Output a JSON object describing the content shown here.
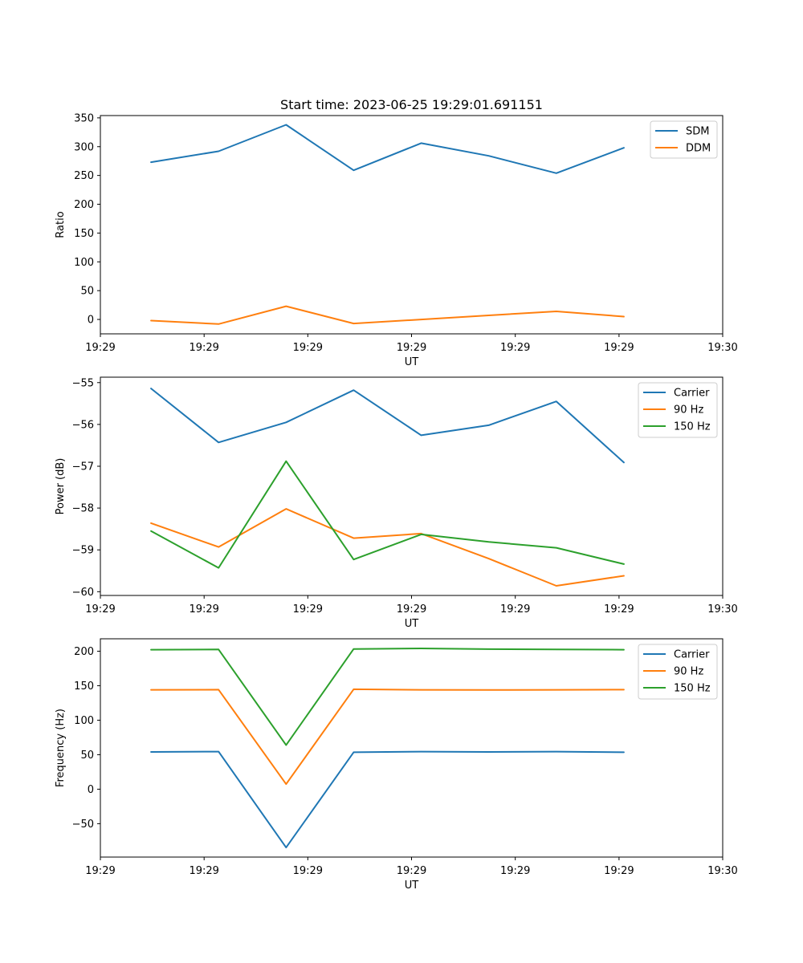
{
  "chart_data": [
    {
      "type": "line",
      "title": "Start time: 2023-06-25 19:29:01.691151",
      "xlabel": "UT",
      "ylabel": "Ratio",
      "x": [
        0,
        1,
        2,
        3,
        4,
        5,
        6,
        7
      ],
      "x_tick_positions": [
        -0.75,
        0.786,
        2.321,
        3.857,
        5.393,
        6.929,
        8.464
      ],
      "x_tick_labels": [
        "19:29",
        "19:29",
        "19:29",
        "19:29",
        "19:29",
        "19:29",
        "19:30"
      ],
      "xlim": [
        -0.75,
        8.464
      ],
      "yticks": [
        0,
        50,
        100,
        150,
        200,
        250,
        300,
        350
      ],
      "ylim": [
        -25,
        354
      ],
      "legend": "top-right",
      "grid": false,
      "series": [
        {
          "name": "SDM",
          "color": "#1f77b4",
          "values": [
            273,
            292,
            338,
            259,
            306,
            284,
            254,
            298
          ]
        },
        {
          "name": "DDM",
          "color": "#ff7f0e",
          "values": [
            -2,
            -8,
            23,
            -7,
            0,
            7,
            14,
            5
          ]
        }
      ]
    },
    {
      "type": "line",
      "title": "",
      "xlabel": "UT",
      "ylabel": "Power (dB)",
      "x": [
        0,
        1,
        2,
        3,
        4,
        5,
        6,
        7
      ],
      "x_tick_positions": [
        -0.75,
        0.786,
        2.321,
        3.857,
        5.393,
        6.929,
        8.464
      ],
      "x_tick_labels": [
        "19:29",
        "19:29",
        "19:29",
        "19:29",
        "19:29",
        "19:29",
        "19:30"
      ],
      "xlim": [
        -0.75,
        8.464
      ],
      "yticks": [
        -60,
        -59,
        -58,
        -57,
        -56,
        -55
      ],
      "ytick_labels": [
        "−60",
        "−59",
        "−58",
        "−57",
        "−56",
        "−55"
      ],
      "ylim": [
        -60.09,
        -54.87
      ],
      "legend": "top-right",
      "grid": false,
      "series": [
        {
          "name": "Carrier",
          "color": "#1f77b4",
          "values": [
            -55.14,
            -56.43,
            -55.95,
            -55.18,
            -56.26,
            -56.02,
            -55.45,
            -56.91
          ]
        },
        {
          "name": "90 Hz",
          "color": "#ff7f0e",
          "values": [
            -58.36,
            -58.93,
            -58.02,
            -58.72,
            -58.61,
            -59.21,
            -59.86,
            -59.62
          ]
        },
        {
          "name": "150 Hz",
          "color": "#2ca02c",
          "values": [
            -58.55,
            -59.43,
            -56.88,
            -59.23,
            -58.63,
            -58.81,
            -58.95,
            -59.34
          ]
        }
      ]
    },
    {
      "type": "line",
      "title": "",
      "xlabel": "UT",
      "ylabel": "Frequency (Hz)",
      "x": [
        0,
        1,
        2,
        3,
        4,
        5,
        6,
        7
      ],
      "x_tick_positions": [
        -0.75,
        0.786,
        2.321,
        3.857,
        5.393,
        6.929,
        8.464
      ],
      "x_tick_labels": [
        "19:29",
        "19:29",
        "19:29",
        "19:29",
        "19:29",
        "19:29",
        "19:30"
      ],
      "xlim": [
        -0.75,
        8.464
      ],
      "yticks": [
        -50,
        0,
        50,
        100,
        150,
        200
      ],
      "ytick_labels": [
        "−50",
        "0",
        "50",
        "100",
        "150",
        "200"
      ],
      "ylim": [
        -98.4,
        218
      ],
      "legend": "top-right",
      "grid": false,
      "series": [
        {
          "name": "Carrier",
          "color": "#1f77b4",
          "values": [
            54,
            54.5,
            -84.5,
            53.5,
            54.5,
            54,
            54.5,
            53.5
          ]
        },
        {
          "name": "90 Hz",
          "color": "#ff7f0e",
          "values": [
            144,
            144.2,
            7.3,
            144.8,
            144,
            143.8,
            144,
            144.2
          ]
        },
        {
          "name": "150 Hz",
          "color": "#2ca02c",
          "values": [
            202.2,
            202.5,
            64,
            203.2,
            204,
            203,
            202.5,
            202.2
          ]
        }
      ]
    }
  ]
}
